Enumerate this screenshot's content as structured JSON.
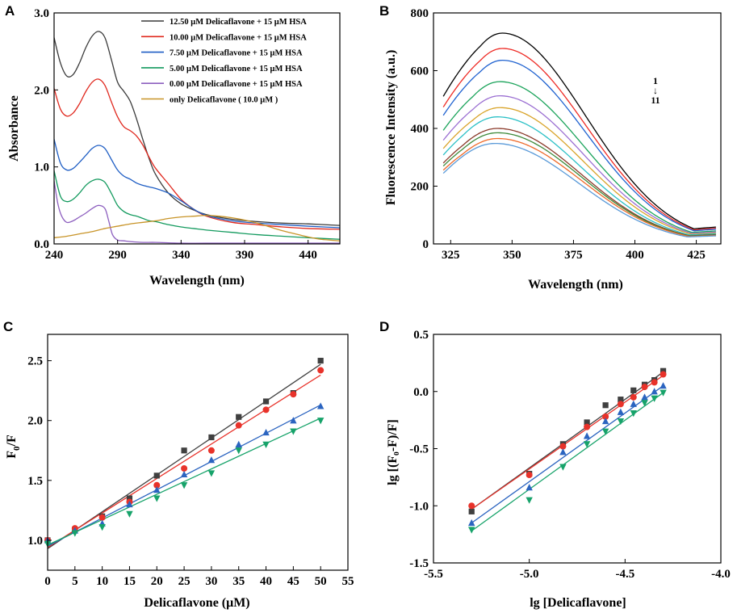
{
  "chart_data": [
    {
      "panel": "A",
      "type": "line",
      "xlabel": "Wavelength (nm)",
      "ylabel": "Absorbance",
      "xlim": [
        240,
        465
      ],
      "ylim": [
        0,
        3.0
      ],
      "xticks": [
        240,
        290,
        340,
        390,
        440
      ],
      "yticks": [
        0.0,
        1.0,
        2.0,
        3.0
      ],
      "ytick_labels": [
        "0.0",
        "1.0",
        "2.0",
        "3.0"
      ],
      "legend_position": "top-right",
      "series": [
        {
          "name": "12.50 μM  Delicaflavone  +  15 μM  HSA",
          "color": "#3a3a3a",
          "x": [
            240,
            245,
            250,
            255,
            260,
            265,
            270,
            275,
            280,
            285,
            290,
            295,
            300,
            305,
            310,
            315,
            320,
            330,
            340,
            350,
            360,
            380,
            400,
            420,
            440,
            465
          ],
          "y": [
            2.68,
            2.35,
            2.18,
            2.2,
            2.35,
            2.55,
            2.7,
            2.76,
            2.68,
            2.4,
            2.1,
            1.98,
            1.85,
            1.62,
            1.35,
            1.1,
            0.9,
            0.66,
            0.52,
            0.44,
            0.38,
            0.32,
            0.29,
            0.27,
            0.26,
            0.24
          ]
        },
        {
          "name": "10.00 μM  Delicaflavone  +  15 μM  HSA",
          "color": "#e0281e",
          "x": [
            240,
            245,
            250,
            255,
            260,
            265,
            270,
            275,
            280,
            285,
            290,
            295,
            300,
            305,
            310,
            315,
            320,
            330,
            340,
            350,
            360,
            380,
            400,
            420,
            440,
            465
          ],
          "y": [
            2.02,
            1.75,
            1.66,
            1.7,
            1.82,
            1.98,
            2.1,
            2.14,
            2.06,
            1.85,
            1.65,
            1.52,
            1.47,
            1.4,
            1.28,
            1.12,
            0.98,
            0.78,
            0.58,
            0.45,
            0.36,
            0.28,
            0.25,
            0.22,
            0.2,
            0.19
          ]
        },
        {
          "name": "7.50 μM  Delicaflavone  +  15 μM  HSA",
          "color": "#1f5ec4",
          "x": [
            240,
            245,
            250,
            255,
            260,
            265,
            270,
            275,
            280,
            285,
            290,
            295,
            300,
            305,
            310,
            315,
            320,
            330,
            340,
            350,
            360,
            380,
            400,
            420,
            440,
            465
          ],
          "y": [
            1.36,
            1.05,
            0.96,
            0.98,
            1.06,
            1.15,
            1.24,
            1.28,
            1.24,
            1.1,
            0.96,
            0.88,
            0.84,
            0.79,
            0.76,
            0.74,
            0.72,
            0.66,
            0.56,
            0.45,
            0.37,
            0.3,
            0.27,
            0.25,
            0.23,
            0.21
          ]
        },
        {
          "name": "5.00 μM  Delicaflavone  +  15 μM  HSA",
          "color": "#139a5e",
          "x": [
            240,
            245,
            250,
            255,
            260,
            265,
            270,
            275,
            280,
            285,
            290,
            295,
            300,
            305,
            310,
            315,
            320,
            330,
            340,
            350,
            360,
            380,
            400,
            420,
            440,
            465
          ],
          "y": [
            0.95,
            0.62,
            0.55,
            0.58,
            0.66,
            0.76,
            0.82,
            0.84,
            0.8,
            0.66,
            0.5,
            0.42,
            0.38,
            0.36,
            0.33,
            0.3,
            0.29,
            0.25,
            0.22,
            0.2,
            0.18,
            0.15,
            0.12,
            0.1,
            0.08,
            0.06
          ]
        },
        {
          "name": "0.00 μM  Delicaflavone  +  15 μM  HSA",
          "color": "#8d5fbf",
          "x": [
            240,
            243,
            246,
            250,
            255,
            260,
            265,
            270,
            275,
            280,
            283,
            286,
            290,
            295,
            300,
            310,
            320,
            340,
            360,
            400,
            440,
            465
          ],
          "y": [
            0.82,
            0.52,
            0.36,
            0.28,
            0.3,
            0.35,
            0.4,
            0.46,
            0.5,
            0.46,
            0.3,
            0.12,
            0.05,
            0.04,
            0.03,
            0.02,
            0.02,
            0.01,
            0.01,
            0.01,
            0.01,
            0.01
          ]
        },
        {
          "name": "only Delicaflavone ( 10.0 μM )",
          "color": "#c89428",
          "x": [
            240,
            250,
            260,
            270,
            280,
            290,
            300,
            310,
            320,
            330,
            340,
            350,
            360,
            370,
            380,
            390,
            400,
            410,
            420,
            430,
            440,
            450,
            465
          ],
          "y": [
            0.08,
            0.1,
            0.13,
            0.16,
            0.2,
            0.23,
            0.26,
            0.28,
            0.3,
            0.33,
            0.35,
            0.36,
            0.37,
            0.36,
            0.34,
            0.31,
            0.27,
            0.22,
            0.17,
            0.13,
            0.09,
            0.06,
            0.04
          ]
        }
      ]
    },
    {
      "panel": "B",
      "type": "line",
      "xlabel": "Wavelength (nm)",
      "ylabel": "Fluorescence Intensity (a.u.)",
      "xlim": [
        318,
        435
      ],
      "ylim": [
        0,
        800
      ],
      "xticks": [
        325,
        350,
        375,
        400,
        425
      ],
      "yticks": [
        0,
        200,
        400,
        600,
        800
      ],
      "annotation_top": "1",
      "annotation_arrow": "↓",
      "annotation_bottom": "11",
      "curve_shape": {
        "x_start": 322,
        "x_end": 433,
        "start_fraction": 0.7,
        "end_fraction": 0.08
      },
      "series": [
        {
          "name": "1",
          "color": "#000000",
          "peak_x": 346,
          "peak_y": 730
        },
        {
          "name": "2",
          "color": "#ee2a24",
          "peak_x": 346,
          "peak_y": 677
        },
        {
          "name": "3",
          "color": "#1f62d0",
          "peak_x": 346,
          "peak_y": 636
        },
        {
          "name": "4",
          "color": "#1aa35a",
          "peak_x": 345,
          "peak_y": 562
        },
        {
          "name": "5",
          "color": "#9b6fd2",
          "peak_x": 345,
          "peak_y": 513
        },
        {
          "name": "6",
          "color": "#d9a42a",
          "peak_x": 345,
          "peak_y": 472
        },
        {
          "name": "7",
          "color": "#2bc0c6",
          "peak_x": 344,
          "peak_y": 440
        },
        {
          "name": "8",
          "color": "#8b3a2a",
          "peak_x": 344,
          "peak_y": 400
        },
        {
          "name": "9",
          "color": "#3e8a3a",
          "peak_x": 344,
          "peak_y": 385
        },
        {
          "name": "10",
          "color": "#ee6a2a",
          "peak_x": 344,
          "peak_y": 365
        },
        {
          "name": "11",
          "color": "#5a9ad8",
          "peak_x": 343,
          "peak_y": 348
        }
      ]
    },
    {
      "panel": "C",
      "type": "scatter",
      "xlabel": "Delicaflavone (μM)",
      "ylabel_main": "F",
      "ylabel_sub": "0",
      "ylabel_tail": "/F",
      "xlim": [
        0,
        55
      ],
      "ylim": [
        0.75,
        2.72
      ],
      "xticks": [
        0,
        5,
        10,
        15,
        20,
        25,
        30,
        35,
        40,
        45,
        50,
        55
      ],
      "yticks": [
        1.0,
        1.5,
        2.0,
        2.5
      ],
      "ytick_labels": [
        "1.0",
        "1.5",
        "2.0",
        "2.5"
      ],
      "x": [
        0,
        5,
        10,
        15,
        20,
        25,
        30,
        35,
        40,
        45,
        50
      ],
      "series": [
        {
          "name": "square",
          "marker": "square",
          "color": "#404040",
          "y": [
            1.0,
            1.09,
            1.2,
            1.35,
            1.54,
            1.75,
            1.86,
            2.03,
            2.16,
            2.23,
            2.5
          ],
          "fit": [
            [
              0,
              0.93
            ],
            [
              50,
              2.47
            ]
          ]
        },
        {
          "name": "circle",
          "marker": "circle",
          "color": "#e8322a",
          "y": [
            1.0,
            1.1,
            1.19,
            1.32,
            1.46,
            1.6,
            1.75,
            1.96,
            2.09,
            2.22,
            2.42
          ],
          "fit": [
            [
              0,
              0.94
            ],
            [
              50,
              2.38
            ]
          ]
        },
        {
          "name": "triangle-up",
          "marker": "triangle-up",
          "color": "#2b64c0",
          "y": [
            1.0,
            1.08,
            1.14,
            1.3,
            1.42,
            1.55,
            1.67,
            1.8,
            1.9,
            2.0,
            2.12
          ],
          "fit": [
            [
              0,
              0.95
            ],
            [
              50,
              2.13
            ]
          ]
        },
        {
          "name": "triangle-down",
          "marker": "triangle-down",
          "color": "#17a36a",
          "y": [
            0.97,
            1.06,
            1.11,
            1.22,
            1.35,
            1.46,
            1.56,
            1.75,
            1.8,
            1.91,
            2.0
          ],
          "fit": [
            [
              0,
              0.96
            ],
            [
              50,
              2.02
            ]
          ]
        }
      ]
    },
    {
      "panel": "D",
      "type": "scatter",
      "xlabel": "lg [Delicaflavone]",
      "ylabel": "lg [(F₀-F)/F]",
      "xlim": [
        -5.5,
        -4.0
      ],
      "ylim": [
        -1.5,
        0.5
      ],
      "xticks": [
        -5.5,
        -5.0,
        -4.5,
        -4.0
      ],
      "xtick_labels": [
        "-5.5",
        "-5.0",
        "-4.5",
        "-4.0"
      ],
      "yticks": [
        -1.5,
        -1.0,
        -0.5,
        0.0,
        0.5
      ],
      "ytick_labels": [
        "-1.5",
        "-1.0",
        "-0.5",
        "0.0",
        "0.5"
      ],
      "x": [
        -5.301,
        -5.0,
        -4.824,
        -4.699,
        -4.602,
        -4.523,
        -4.456,
        -4.398,
        -4.347,
        -4.301
      ],
      "series": [
        {
          "name": "square",
          "marker": "square",
          "color": "#404040",
          "y": [
            -1.05,
            -0.72,
            -0.46,
            -0.27,
            -0.12,
            -0.07,
            0.01,
            0.06,
            0.1,
            0.18
          ],
          "fit": [
            [
              -5.301,
              -1.03
            ],
            [
              -4.301,
              0.17
            ]
          ]
        },
        {
          "name": "circle",
          "marker": "circle",
          "color": "#e8322a",
          "y": [
            -1.0,
            -0.73,
            -0.48,
            -0.31,
            -0.22,
            -0.11,
            -0.05,
            0.04,
            0.08,
            0.15
          ],
          "fit": [
            [
              -5.301,
              -1.03
            ],
            [
              -4.301,
              0.14
            ]
          ]
        },
        {
          "name": "triangle-up",
          "marker": "triangle-up",
          "color": "#2b64c0",
          "y": [
            -1.15,
            -0.84,
            -0.53,
            -0.39,
            -0.26,
            -0.18,
            -0.11,
            -0.05,
            0.0,
            0.05
          ],
          "fit": [
            [
              -5.301,
              -1.15
            ],
            [
              -4.301,
              0.05
            ]
          ]
        },
        {
          "name": "triangle-down",
          "marker": "triangle-down",
          "color": "#17a36a",
          "y": [
            -1.21,
            -0.95,
            -0.66,
            -0.46,
            -0.35,
            -0.26,
            -0.19,
            -0.1,
            -0.06,
            -0.01
          ],
          "fit": [
            [
              -5.301,
              -1.22
            ],
            [
              -4.301,
              -0.01
            ]
          ]
        }
      ]
    }
  ]
}
